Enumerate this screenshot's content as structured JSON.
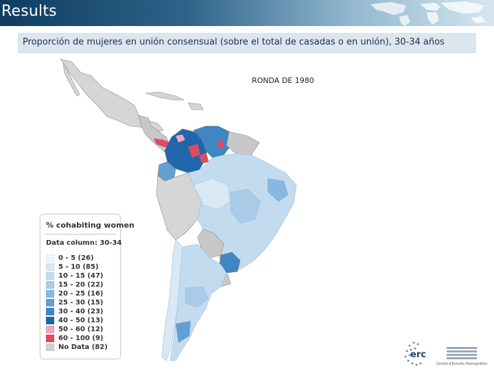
{
  "header": {
    "title": "Results"
  },
  "subtitle": "Proporción de mujeres en unión consensual (sobre el total de casadas o en unión), 30-34 años",
  "map": {
    "round_label": "RONDA DE 1980"
  },
  "legend": {
    "title": "% cohabiting women",
    "data_column": "Data column: 30-34",
    "items": [
      {
        "label": "0 - 5 (26)",
        "color": "#f1f6fb"
      },
      {
        "label": "5 - 10 (85)",
        "color": "#d9e8f5"
      },
      {
        "label": "10 - 15 (47)",
        "color": "#c3dbef"
      },
      {
        "label": "15 - 20 (22)",
        "color": "#a8cbe7"
      },
      {
        "label": "20 - 25 (16)",
        "color": "#87b8de"
      },
      {
        "label": "25 - 30 (15)",
        "color": "#62a0d3"
      },
      {
        "label": "30 - 40 (23)",
        "color": "#3f86c4"
      },
      {
        "label": "40 - 50 (13)",
        "color": "#1f66ac"
      },
      {
        "label": "50 - 60 (12)",
        "color": "#f2a6c4"
      },
      {
        "label": "60 - 100 (9)",
        "color": "#e04a62"
      },
      {
        "label": "No Data (82)",
        "color": "#d2d2d2"
      }
    ]
  },
  "logos": {
    "erc": "erc",
    "ced": "Centre d'Estudis Demogràfics"
  }
}
